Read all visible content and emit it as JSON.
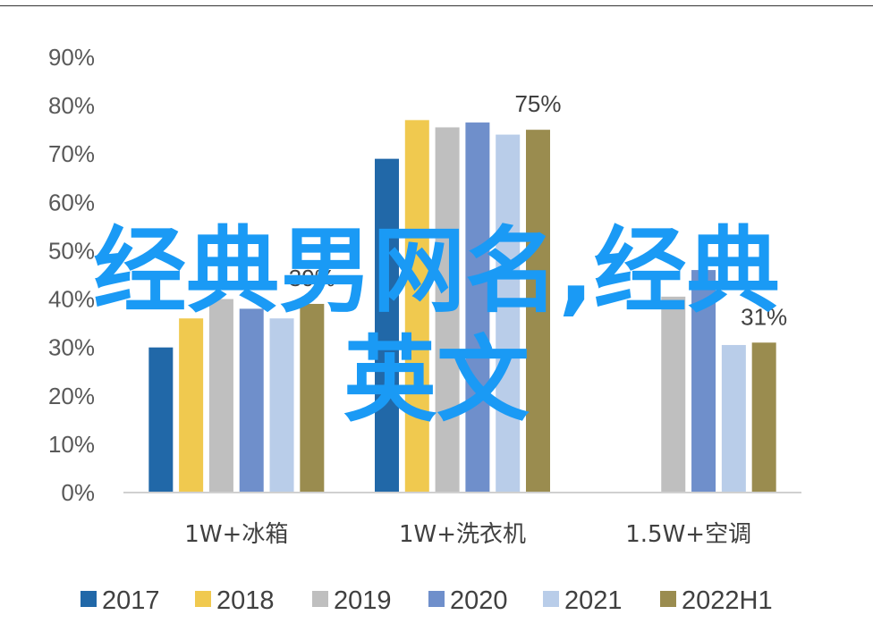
{
  "chart_data": {
    "type": "bar",
    "categories": [
      "1W+冰箱",
      "1W+洗衣机",
      "1.5W+空调"
    ],
    "series": [
      {
        "name": "2017",
        "color": "#2168a8",
        "values": [
          30,
          69,
          null
        ]
      },
      {
        "name": "2018",
        "color": "#f0c94f",
        "values": [
          36,
          77,
          null
        ]
      },
      {
        "name": "2019",
        "color": "#bfbfbf",
        "values": [
          40,
          75.5,
          40.5
        ]
      },
      {
        "name": "2020",
        "color": "#6f8fcb",
        "values": [
          38,
          76.5,
          46
        ]
      },
      {
        "name": "2021",
        "color": "#b9cde9",
        "values": [
          36,
          74,
          30.5
        ]
      },
      {
        "name": "2022H1",
        "color": "#9a8c4f",
        "values": [
          39,
          75,
          31
        ]
      }
    ],
    "data_labels": [
      {
        "category": 0,
        "series": 5,
        "text": "39%"
      },
      {
        "category": 1,
        "series": 5,
        "text": "75%"
      },
      {
        "category": 2,
        "series": 5,
        "text": "31%"
      }
    ],
    "y_ticks": [
      "0%",
      "10%",
      "20%",
      "30%",
      "40%",
      "50%",
      "60%",
      "70%",
      "80%",
      "90%"
    ],
    "ylim": [
      0,
      90
    ],
    "grid": false,
    "legend_position": "bottom"
  },
  "watermark": {
    "line1": "经典男网名,经典",
    "line2": "英文"
  }
}
